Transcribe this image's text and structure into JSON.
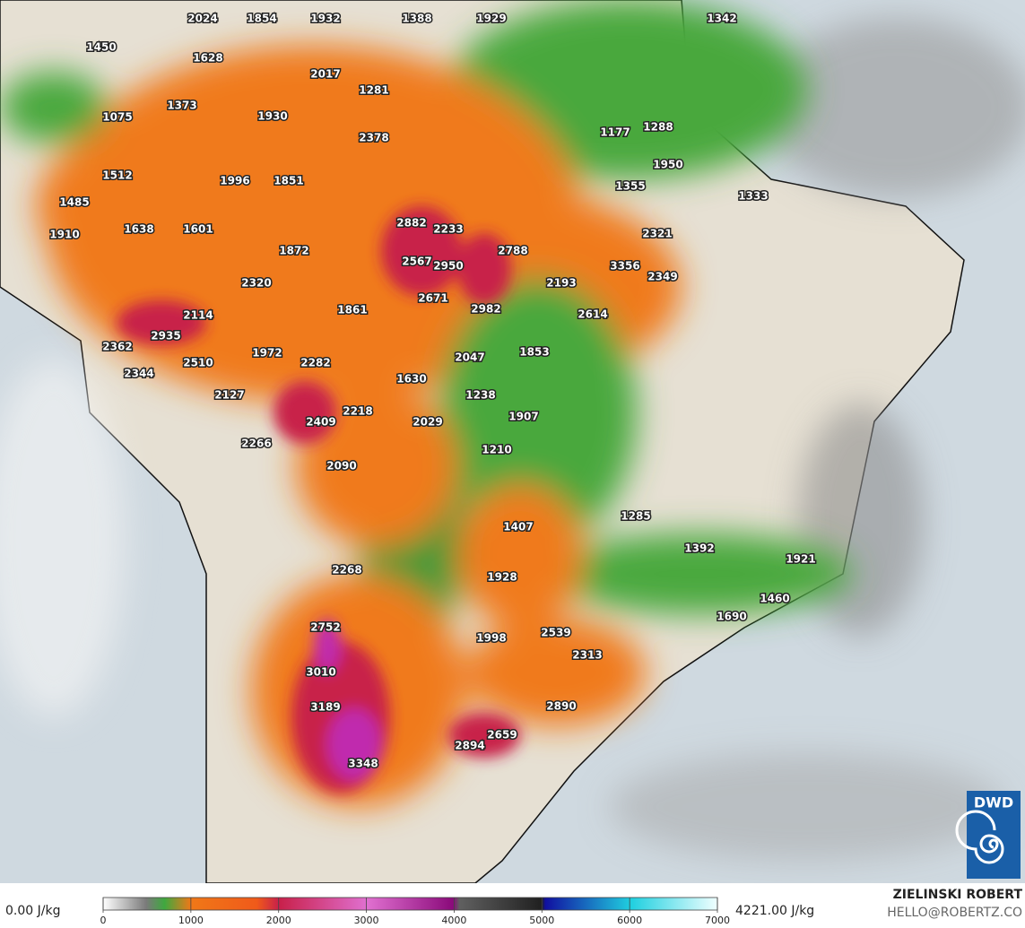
{
  "map": {
    "labels": [
      2024,
      1854,
      1932,
      1388,
      1929,
      1342,
      1450,
      1628,
      2017,
      1281,
      1075,
      1373,
      1930,
      2378,
      1177,
      1288,
      1950,
      1512,
      1996,
      1851,
      1355,
      1333,
      1485,
      2882,
      2233,
      2321,
      1910,
      1638,
      1601,
      1872,
      2788,
      2567,
      2950,
      3356,
      2349,
      2320,
      2193,
      2671,
      2982,
      2614,
      1861,
      2114,
      2935,
      2362,
      1972,
      2047,
      1853,
      2510,
      2282,
      2344,
      1630,
      1238,
      2127,
      2218,
      1907,
      2409,
      2029,
      2266,
      1210,
      2090,
      1285,
      1407,
      1392,
      1921,
      2268,
      1928,
      1460,
      1690,
      2752,
      2539,
      1998,
      2313,
      3010,
      3189,
      2890,
      2659,
      2894,
      3348
    ]
  },
  "colorbar": {
    "min_label": "0.00 J/kg",
    "max_label": "4221.00 J/kg",
    "ticks": [
      0,
      1000,
      2000,
      3000,
      4000,
      5000,
      6000,
      7000
    ]
  },
  "credits": {
    "author": "ZIELINSKI ROBERT",
    "contact": "HELLO@ROBERTZ.CO"
  },
  "logo": {
    "text": "DWD"
  }
}
